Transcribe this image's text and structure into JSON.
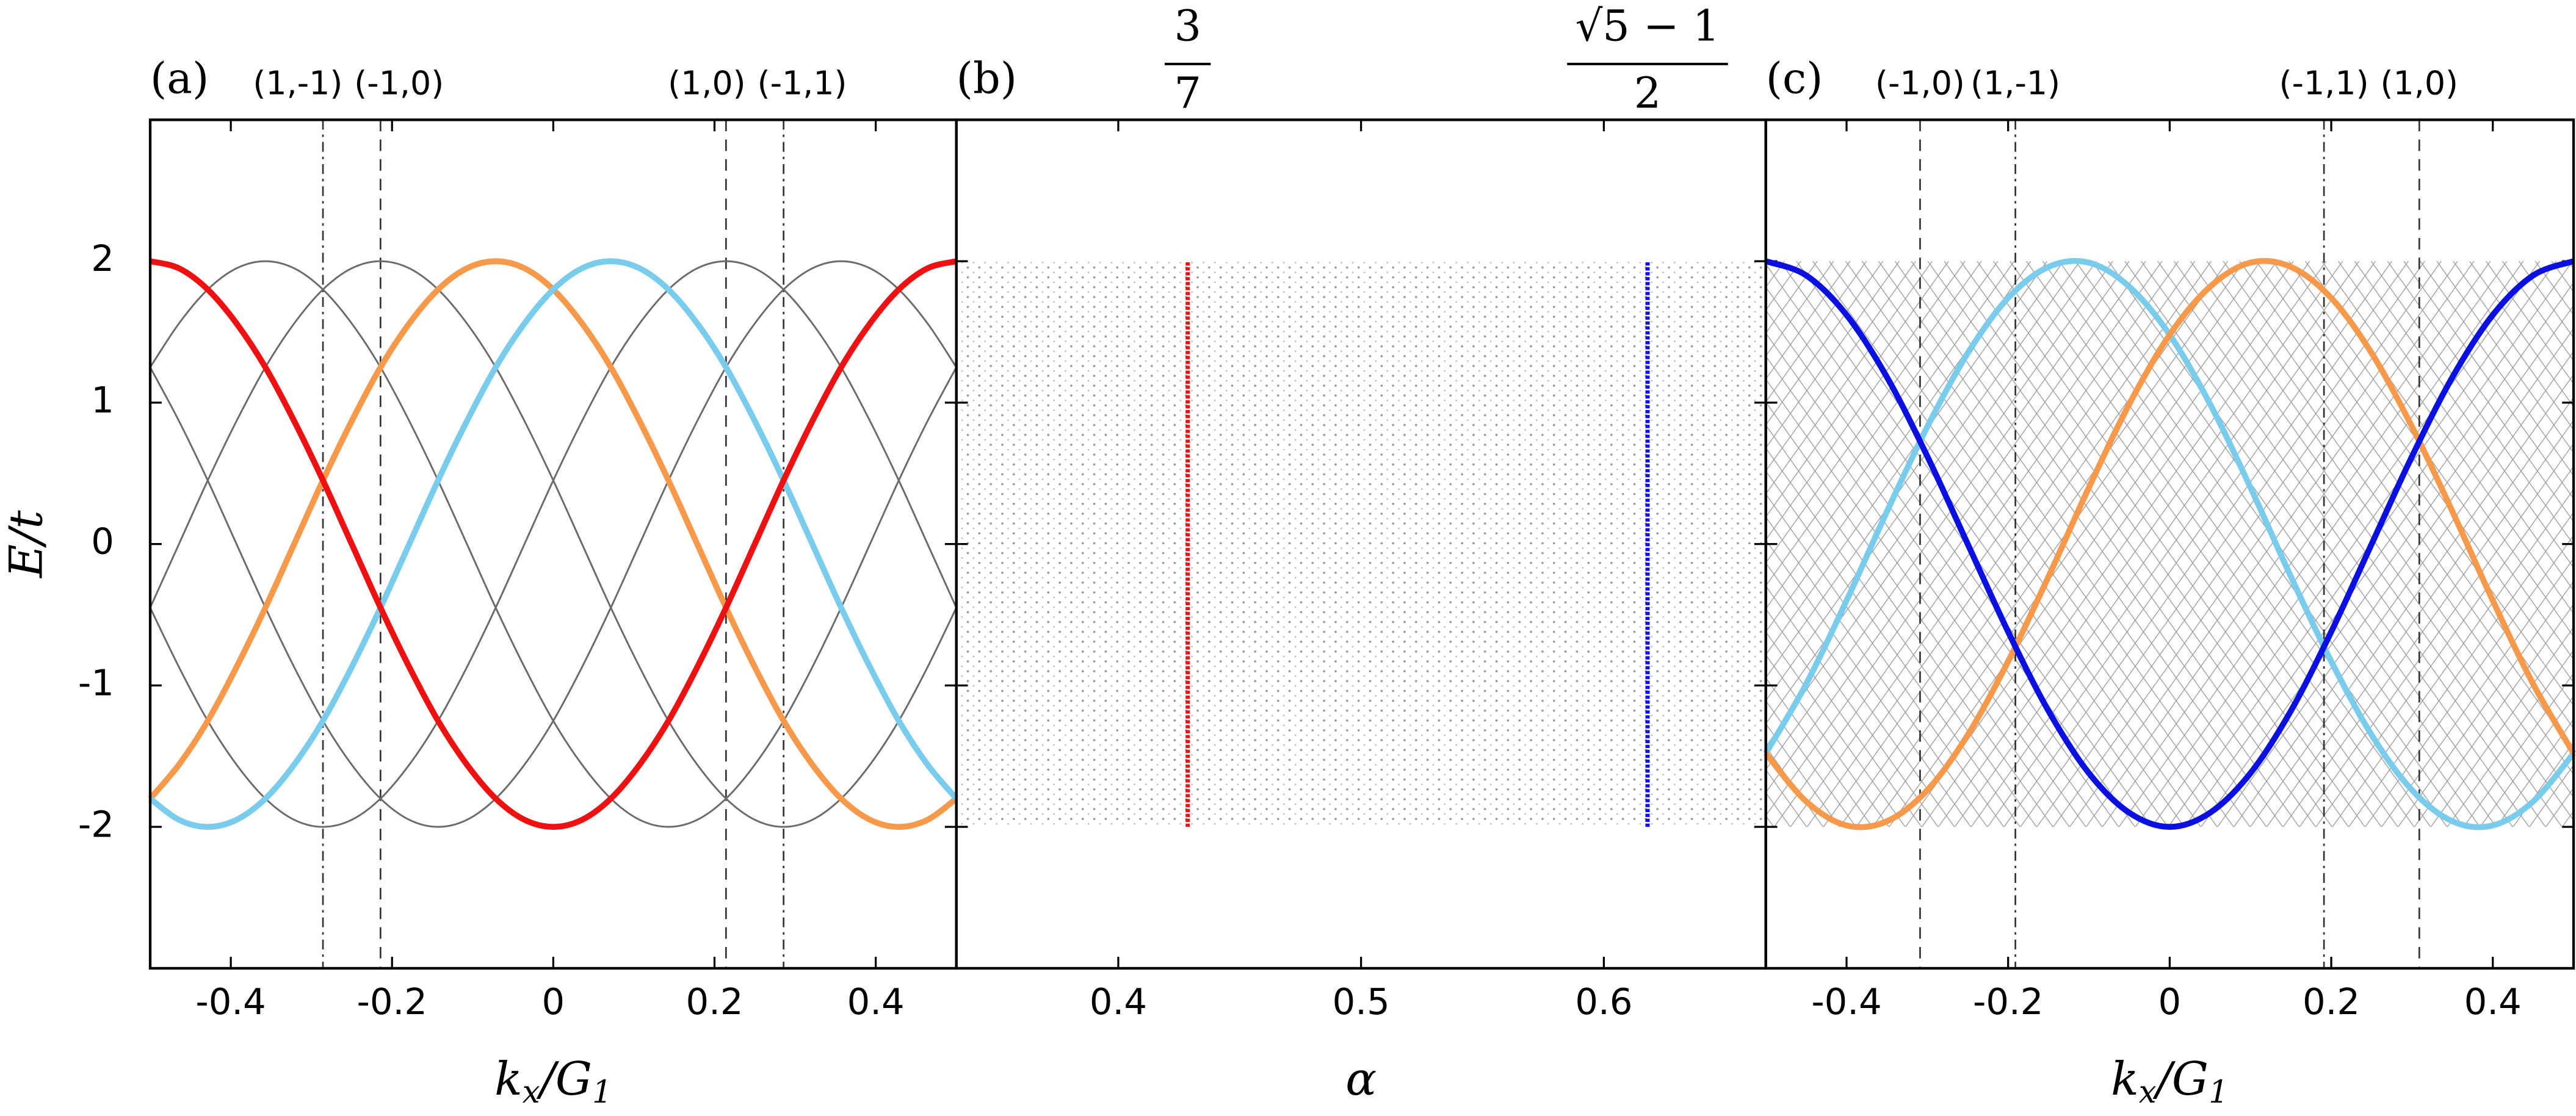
{
  "chart_data": [
    {
      "type": "line",
      "panel_label": "(a)",
      "xlabel": [
        {
          "text": "k"
        },
        {
          "text": "x",
          "sub": true
        },
        {
          "text": "/G"
        },
        {
          "text": "1",
          "sub": true
        }
      ],
      "ylabel": [
        {
          "text": "E/t"
        }
      ],
      "xlim": [
        -0.5,
        0.5
      ],
      "xticks": [
        -0.4,
        -0.2,
        0,
        0.2,
        0.4
      ],
      "ylim": [
        -3,
        3
      ],
      "yticks": [
        -2,
        -1,
        0,
        1,
        2
      ],
      "ytick_labels": true,
      "top_ticks": [
        {
          "value": -0.2857,
          "label": "(1,-1)",
          "style": "dashdot",
          "anchor": "end"
        },
        {
          "value": -0.2143,
          "label": "(-1,0)",
          "style": "dashed",
          "anchor": "start"
        },
        {
          "value": 0.2143,
          "label": "(1,0)",
          "style": "dashed",
          "anchor": "end"
        },
        {
          "value": 0.2857,
          "label": "(-1,1)",
          "style": "dashdot",
          "anchor": "start"
        }
      ],
      "x": [
        -0.5,
        -0.4643,
        -0.4286,
        -0.3929,
        -0.3571,
        -0.3214,
        -0.2857,
        -0.25,
        -0.2143,
        -0.1786,
        -0.1429,
        -0.1071,
        -0.0714,
        -0.0357,
        0,
        0.0357,
        0.0714,
        0.1071,
        0.1429,
        0.1786,
        0.2143,
        0.25,
        0.2857,
        0.3214,
        0.3571,
        0.3929,
        0.4286,
        0.4643,
        0.5
      ],
      "series": [
        {
          "color": "#6b6b6b",
          "highlight": false,
          "values": [
            1.25,
            1.56,
            1.8,
            1.95,
            2,
            1.95,
            1.8,
            1.56,
            1.25,
            0.87,
            0.45,
            0,
            -0.45,
            -0.87,
            -1.25,
            -1.56,
            -1.8,
            -1.95,
            -2,
            -1.95,
            -1.8,
            -1.56,
            -1.25,
            -0.87,
            -0.45,
            0,
            0.45,
            0.87,
            1.25
          ]
        },
        {
          "color": "#6b6b6b",
          "highlight": false,
          "values": [
            -0.45,
            0,
            0.45,
            0.87,
            1.25,
            1.56,
            1.8,
            1.95,
            2,
            1.95,
            1.8,
            1.56,
            1.25,
            0.87,
            0.45,
            0,
            -0.45,
            -0.87,
            -1.25,
            -1.56,
            -1.8,
            -1.95,
            -2,
            -1.95,
            -1.8,
            -1.56,
            -1.25,
            -0.87,
            -0.45
          ]
        },
        {
          "color": "#6b6b6b",
          "highlight": false,
          "values": [
            -0.45,
            -0.87,
            -1.25,
            -1.56,
            -1.8,
            -1.95,
            -2,
            -1.95,
            -1.8,
            -1.56,
            -1.25,
            -0.87,
            -0.45,
            0,
            0.45,
            0.87,
            1.25,
            1.56,
            1.8,
            1.95,
            2,
            1.95,
            1.8,
            1.56,
            1.25,
            0.87,
            0.45,
            0,
            -0.45
          ]
        },
        {
          "color": "#6b6b6b",
          "highlight": false,
          "values": [
            1.25,
            0.87,
            0.45,
            0,
            -0.45,
            -0.87,
            -1.25,
            -1.56,
            -1.8,
            -1.95,
            -2,
            -1.95,
            -1.8,
            -1.56,
            -1.25,
            -0.87,
            -0.45,
            0,
            0.45,
            0.87,
            1.25,
            1.56,
            1.8,
            1.95,
            2,
            1.95,
            1.8,
            1.56,
            1.25
          ]
        },
        {
          "color": "#f7994a",
          "highlight": true,
          "values": [
            -1.8,
            -1.56,
            -1.25,
            -0.87,
            -0.45,
            0,
            0.45,
            0.87,
            1.25,
            1.56,
            1.8,
            1.95,
            2,
            1.95,
            1.8,
            1.56,
            1.25,
            0.87,
            0.45,
            0,
            -0.45,
            -0.87,
            -1.25,
            -1.56,
            -1.8,
            -1.95,
            -2,
            -1.95,
            -1.8
          ]
        },
        {
          "color": "#7accec",
          "highlight": true,
          "values": [
            -1.8,
            -1.95,
            -2,
            -1.95,
            -1.8,
            -1.56,
            -1.25,
            -0.87,
            -0.45,
            0,
            0.45,
            0.87,
            1.25,
            1.56,
            1.8,
            1.95,
            2,
            1.95,
            1.8,
            1.56,
            1.25,
            0.87,
            0.45,
            0,
            -0.45,
            -0.87,
            -1.25,
            -1.56,
            -1.8
          ]
        },
        {
          "color": "#ee1111",
          "highlight": true,
          "values": [
            2,
            1.95,
            1.8,
            1.56,
            1.25,
            0.87,
            0.45,
            0,
            -0.45,
            -0.87,
            -1.25,
            -1.56,
            -1.8,
            -1.95,
            -2,
            -1.95,
            -1.8,
            -1.56,
            -1.25,
            -0.87,
            -0.45,
            0,
            0.45,
            0.87,
            1.25,
            1.56,
            1.8,
            1.95,
            2
          ]
        }
      ]
    },
    {
      "type": "spectrum",
      "panel_label": "(b)",
      "xlabel": [
        {
          "text": "α"
        }
      ],
      "xlim": [
        0.3333,
        0.6667
      ],
      "xticks": [
        0.4,
        0.5,
        0.6
      ],
      "ylim": [
        -3,
        3
      ],
      "yticks": [
        -2,
        -1,
        0,
        1,
        2
      ],
      "ytick_labels": false,
      "band": [
        -2,
        2
      ],
      "band_texture": "dots",
      "top_ticks": [
        {
          "value": 0.4286,
          "numerator": "3",
          "denominator": "7"
        },
        {
          "value": 0.618,
          "numerator": "√5 − 1",
          "denominator": "2"
        }
      ],
      "series": [
        {
          "color": "#ee1111",
          "x": 0.4286,
          "values": [
            -2,
            2
          ]
        },
        {
          "color": "#1010e0",
          "x": 0.618,
          "values": [
            -2,
            2
          ]
        }
      ]
    },
    {
      "type": "line",
      "panel_label": "(c)",
      "xlabel": [
        {
          "text": "k"
        },
        {
          "text": "x",
          "sub": true
        },
        {
          "text": "/G"
        },
        {
          "text": "1",
          "sub": true
        }
      ],
      "xlim": [
        -0.5,
        0.5
      ],
      "xticks": [
        -0.4,
        -0.2,
        0,
        0.2,
        0.4
      ],
      "ylim": [
        -3,
        3
      ],
      "yticks": [
        -2,
        -1,
        0,
        1,
        2
      ],
      "ytick_labels": false,
      "band": [
        -2,
        2
      ],
      "band_texture": "mesh",
      "top_ticks": [
        {
          "value": -0.309,
          "label": "(-1,0)",
          "style": "dashed",
          "anchor": "middle"
        },
        {
          "value": -0.191,
          "label": "(1,-1)",
          "style": "dashdot",
          "anchor": "middle"
        },
        {
          "value": 0.191,
          "label": "(-1,1)",
          "style": "dashdot",
          "anchor": "middle"
        },
        {
          "value": 0.309,
          "label": "(1,0)",
          "style": "dashed",
          "anchor": "middle"
        }
      ],
      "x": [
        -0.5,
        -0.45,
        -0.4,
        -0.35,
        -0.3,
        -0.25,
        -0.2,
        -0.15,
        -0.1,
        -0.05,
        0,
        0.05,
        0.1,
        0.15,
        0.2,
        0.25,
        0.3,
        0.35,
        0.4,
        0.45,
        0.5
      ],
      "series": [
        {
          "color": "#7accec",
          "highlight": true,
          "values": [
            -1.48,
            -0.99,
            -0.4,
            0.23,
            0.83,
            1.35,
            1.74,
            1.96,
            1.99,
            1.82,
            1.48,
            0.99,
            0.4,
            -0.23,
            -0.83,
            -1.35,
            -1.74,
            -1.96,
            -1.99,
            -1.82,
            -1.48
          ]
        },
        {
          "color": "#f7994a",
          "highlight": true,
          "values": [
            -1.48,
            -1.82,
            -1.99,
            -1.96,
            -1.74,
            -1.35,
            -0.83,
            -0.23,
            0.4,
            0.99,
            1.48,
            1.82,
            1.99,
            1.96,
            1.74,
            1.35,
            0.83,
            0.23,
            -0.4,
            -0.99,
            -1.48
          ]
        },
        {
          "color": "#0a10e0",
          "highlight": true,
          "values": [
            2,
            1.9,
            1.62,
            1.18,
            0.62,
            0,
            -0.62,
            -1.18,
            -1.62,
            -1.9,
            -2,
            -1.9,
            -1.62,
            -1.18,
            -0.62,
            0,
            0.62,
            1.18,
            1.62,
            1.9,
            2
          ]
        }
      ]
    }
  ]
}
